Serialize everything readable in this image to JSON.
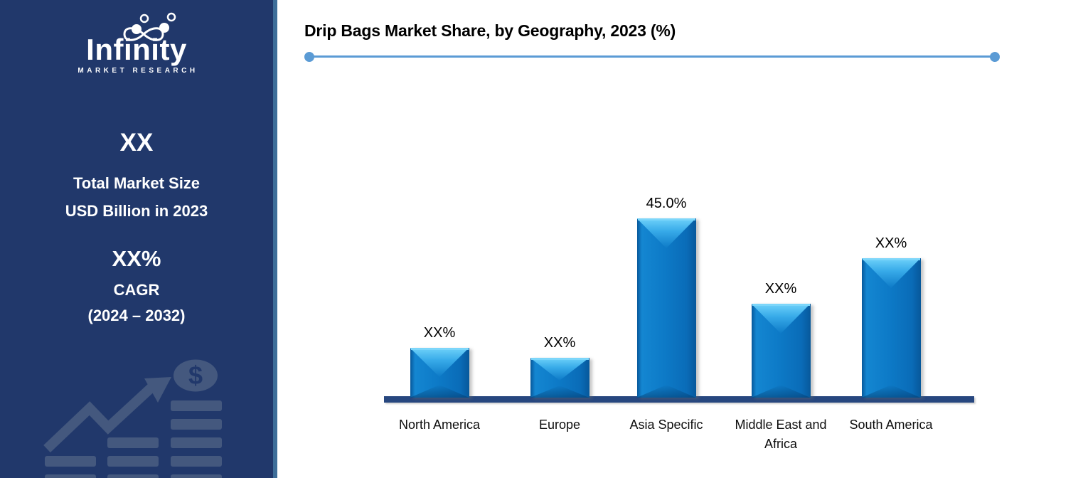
{
  "sidebar": {
    "logo": {
      "wordmark": "Infinity",
      "subtitle": "MARKET RESEARCH"
    },
    "market_size": {
      "value": "XX",
      "label_line1": "Total Market Size",
      "label_line2": "USD Billion in 2023"
    },
    "cagr": {
      "value": "XX%",
      "label": "CAGR",
      "period": "(2024 – 2032)"
    },
    "watermark_icon": "growth-chart-dollar-icon"
  },
  "chart_data": {
    "type": "bar",
    "title": "Drip Bags Market Share, by Geography, 2023 (%)",
    "categories": [
      "North America",
      "Europe",
      "Asia Specific",
      "Middle East and Africa",
      "South America"
    ],
    "labels": [
      "XX%",
      "XX%",
      "45.0%",
      "XX%",
      "XX%"
    ],
    "values": [
      12.5,
      10,
      45,
      23.5,
      35
    ],
    "note": "Only 'Asia Specific' value shown as 45.0%; other bars masked as XX% (heights estimated from pixels)",
    "xlabel": "",
    "ylabel": "",
    "ylim": [
      0,
      50
    ],
    "grid": false,
    "legend": false,
    "bar_color": "#0d7ac7"
  },
  "colors": {
    "sidebar_bg": "#21386B",
    "sidebar_edge": "#3E6E99",
    "watermark": "#44587E",
    "bar_main": "#0d7ac7",
    "bar_highlight": "#6FD2FA",
    "axis_line": "#27477F",
    "divider": "#5B9BD5",
    "title_text": "#000000"
  }
}
